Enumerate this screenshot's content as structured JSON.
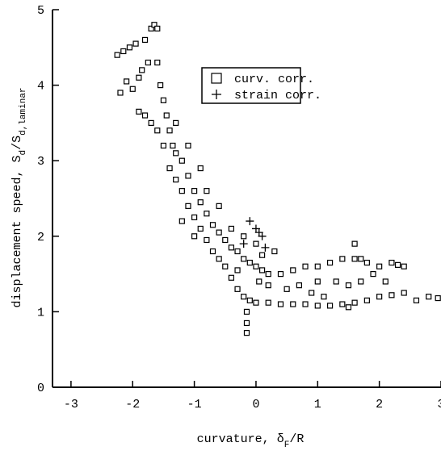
{
  "chart_data": {
    "type": "scatter",
    "xlabel_parts": [
      "curvature,  δ",
      "F",
      "/R"
    ],
    "ylabel_parts": [
      "displacement speed,  S",
      "d",
      "/S",
      "d,laminar"
    ],
    "xlim": [
      -3.3,
      3
    ],
    "xticks": [
      -3,
      -2,
      -1,
      0,
      1,
      2,
      3
    ],
    "ylim": [
      0,
      5
    ],
    "yticks": [
      0,
      1,
      2,
      3,
      4,
      5
    ],
    "legend": "upper right",
    "series": [
      {
        "name": "curv. corr.",
        "marker": "square",
        "color": "#000000",
        "x": [
          -2.25,
          -2.15,
          -2.05,
          -1.95,
          -1.8,
          -1.7,
          -1.65,
          -1.6,
          -1.75,
          -1.85,
          -2.1,
          -2.2,
          -1.55,
          -1.5,
          -1.45,
          -1.4,
          -1.35,
          -1.3,
          -1.2,
          -1.1,
          -1.0,
          -0.9,
          -0.8,
          -0.7,
          -0.6,
          -0.5,
          -0.4,
          -0.3,
          -0.2,
          -0.1,
          0,
          0.1,
          0.2,
          0.4,
          0.6,
          0.8,
          1.0,
          1.2,
          1.4,
          1.6,
          1.8,
          2.0,
          2.2,
          2.3,
          -1.9,
          -1.8,
          -1.7,
          -1.6,
          -1.5,
          -1.4,
          -1.3,
          -1.2,
          -1.1,
          -1.0,
          -0.9,
          -0.8,
          -0.7,
          -0.6,
          -0.5,
          -0.4,
          -0.3,
          -0.2,
          -0.15,
          -0.15,
          -0.15,
          -0.1,
          0,
          0.2,
          0.4,
          0.6,
          0.8,
          1.0,
          1.2,
          1.4,
          1.6,
          1.8,
          2.0,
          2.2,
          2.4,
          2.6,
          2.8,
          2.95,
          -1.9,
          -2.0,
          -1.6,
          -1.3,
          -1.1,
          -0.9,
          -0.8,
          -0.6,
          -0.4,
          -0.2,
          0,
          0.3,
          0.5,
          0.7,
          1.0,
          1.3,
          1.5,
          1.7,
          1.9,
          2.1,
          2.4,
          0.2,
          -0.3,
          0.05,
          -1.2,
          -1.0,
          0.9,
          1.1,
          1.5,
          0.1,
          1.7,
          1.6
        ],
        "y": [
          4.4,
          4.45,
          4.5,
          4.55,
          4.6,
          4.75,
          4.8,
          4.75,
          4.3,
          4.2,
          4.05,
          3.9,
          4.0,
          3.8,
          3.6,
          3.4,
          3.2,
          3.1,
          3.0,
          2.8,
          2.6,
          2.45,
          2.3,
          2.15,
          2.05,
          1.95,
          1.85,
          1.8,
          1.7,
          1.65,
          1.6,
          1.55,
          1.5,
          1.5,
          1.55,
          1.6,
          1.6,
          1.65,
          1.7,
          1.7,
          1.65,
          1.6,
          1.65,
          1.62,
          3.65,
          3.6,
          3.5,
          3.4,
          3.2,
          2.9,
          2.75,
          2.6,
          2.4,
          2.25,
          2.1,
          1.95,
          1.8,
          1.7,
          1.6,
          1.45,
          1.3,
          1.2,
          1.0,
          0.85,
          0.72,
          1.15,
          1.12,
          1.12,
          1.1,
          1.1,
          1.1,
          1.08,
          1.08,
          1.1,
          1.12,
          1.15,
          1.2,
          1.22,
          1.25,
          1.15,
          1.2,
          1.18,
          4.1,
          3.95,
          4.3,
          3.5,
          3.2,
          2.9,
          2.6,
          2.4,
          2.1,
          2.0,
          1.9,
          1.8,
          1.3,
          1.35,
          1.4,
          1.4,
          1.35,
          1.4,
          1.5,
          1.4,
          1.6,
          1.35,
          1.55,
          1.4,
          2.2,
          2.0,
          1.25,
          1.2,
          1.06,
          1.75,
          1.7,
          1.9
        ]
      },
      {
        "name": "strain corr.",
        "marker": "plus",
        "color": "#000000",
        "x": [
          -0.1,
          0,
          0.05,
          0.1,
          -0.2,
          0.15
        ],
        "y": [
          2.2,
          2.1,
          2.05,
          2.0,
          1.9,
          1.85
        ]
      }
    ]
  }
}
